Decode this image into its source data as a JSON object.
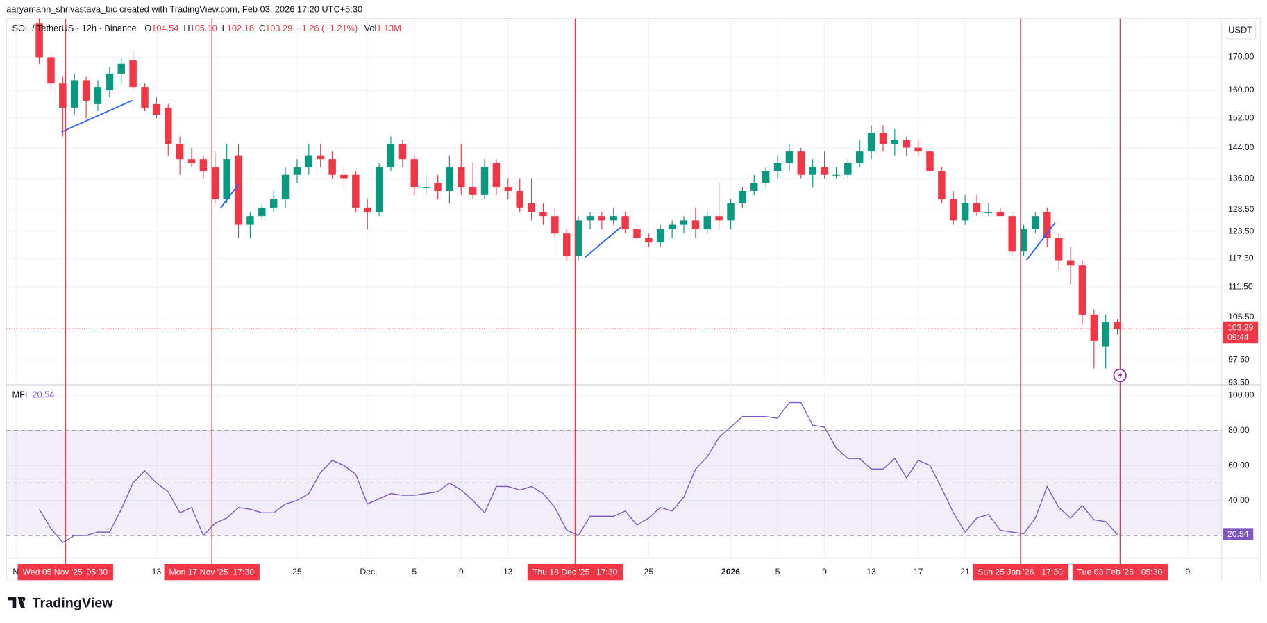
{
  "page": {
    "attribution": "aaryamann_shrivastava_bic created with TradingView.com, Feb 03, 2026 17:20 UTC+5:30",
    "logo": "TradingView",
    "currency": "USDT"
  },
  "chart_data": [
    {
      "type": "candlestick",
      "title": "SOL / TetherUS · 12h · Binance",
      "legend": [
        {
          "label": "O",
          "value": "104.54"
        },
        {
          "label": "H",
          "value": "105.10"
        },
        {
          "label": "L",
          "value": "102.18"
        },
        {
          "label": "C",
          "value": "103.29"
        }
      ],
      "change": "−1.26 (−1.21%)",
      "volume": {
        "label": "Vol",
        "value": "1.13M"
      },
      "x": [
        2,
        3,
        4,
        5,
        6,
        7,
        8,
        9,
        10,
        11,
        12,
        13,
        14,
        15,
        16,
        17,
        18,
        19,
        20,
        21,
        22,
        23,
        24,
        25,
        26,
        27,
        28,
        29,
        30,
        31,
        32,
        33,
        34,
        35,
        36,
        37,
        38,
        39,
        40,
        41,
        42,
        43,
        44,
        45,
        46,
        47,
        48,
        49,
        50,
        51,
        52,
        53,
        54,
        55,
        56,
        57,
        58,
        59,
        60,
        61,
        62,
        63,
        64,
        65,
        66,
        67,
        68,
        69,
        70,
        71,
        72,
        73,
        74,
        75,
        76,
        77,
        78,
        79,
        80,
        81,
        82,
        83,
        84,
        85,
        86,
        87,
        88,
        89,
        90,
        91,
        92,
        93,
        94
      ],
      "open": [
        181,
        170,
        162,
        155,
        163,
        156,
        160,
        165,
        169,
        161,
        156,
        155,
        145,
        141,
        141,
        139,
        131,
        142,
        125,
        127,
        129,
        131,
        137,
        139,
        142,
        141,
        137,
        137,
        129,
        128,
        139,
        145,
        141,
        134,
        135,
        133,
        139,
        134,
        132,
        140,
        134,
        133,
        130,
        128,
        127,
        123,
        118,
        126,
        127,
        126,
        127,
        124,
        122,
        121,
        124,
        125,
        126,
        124,
        127,
        126,
        130,
        133,
        135,
        138,
        140,
        143,
        137,
        139,
        137,
        137,
        140,
        143,
        148,
        145,
        146,
        144,
        143,
        138,
        131,
        126,
        130,
        128,
        128,
        127,
        119,
        124,
        128,
        122,
        117,
        116,
        106,
        100,
        104.54
      ],
      "high": [
        183,
        171,
        164,
        165,
        164,
        163,
        167,
        170,
        172,
        162,
        158,
        156,
        147,
        144,
        142,
        143,
        145,
        145,
        128,
        130,
        133,
        139,
        141,
        145,
        145,
        143,
        139,
        138,
        131,
        140,
        147,
        146,
        142,
        137,
        137,
        142,
        145,
        140,
        141,
        141,
        136,
        136,
        136,
        130,
        129,
        124,
        127,
        128,
        128,
        129,
        128,
        125,
        123,
        125,
        126,
        127,
        129,
        128,
        135,
        131,
        134,
        137,
        139,
        142,
        145,
        144,
        141,
        143,
        139,
        141,
        146,
        150,
        150,
        149,
        147,
        146,
        144,
        139,
        133,
        132,
        132,
        130,
        129,
        128,
        125,
        128,
        129,
        123,
        120,
        117,
        107,
        106,
        105.1
      ],
      "low": [
        168,
        160,
        147,
        153,
        152,
        154,
        158,
        162,
        160,
        154,
        152,
        142,
        137,
        139,
        136,
        130,
        130,
        122,
        122,
        126,
        128,
        129,
        135,
        137,
        139,
        136,
        134,
        128,
        124,
        127,
        138,
        139,
        132,
        132,
        131,
        130,
        132,
        131,
        131,
        132,
        131,
        128,
        126,
        125,
        122,
        117,
        117,
        124,
        124,
        125,
        123,
        121,
        120,
        120,
        122,
        123,
        122,
        123,
        124,
        124,
        129,
        132,
        134,
        136,
        138,
        136,
        134,
        136,
        136,
        136,
        139,
        141,
        143,
        142,
        142,
        142,
        137,
        130,
        125,
        125,
        127,
        127,
        127,
        118,
        118,
        123,
        120,
        115,
        112,
        104,
        96,
        96,
        102.18
      ],
      "close": [
        170,
        162,
        155,
        163,
        157,
        161,
        165,
        168,
        161,
        155,
        153,
        145,
        141,
        140,
        138,
        131,
        141,
        125,
        127,
        129,
        131,
        137,
        139,
        142,
        141,
        137,
        136,
        129,
        128,
        139,
        145,
        141,
        134,
        134,
        133,
        139,
        134,
        132,
        139,
        134,
        133,
        129,
        128,
        127,
        123,
        118,
        126,
        127,
        126,
        127,
        124,
        122,
        121,
        124,
        125,
        126,
        124,
        127,
        126,
        130,
        133,
        135,
        138,
        140,
        143,
        137,
        139,
        137,
        137,
        140,
        143,
        148,
        145,
        146,
        144,
        143,
        138,
        131,
        126,
        130,
        128,
        128,
        127,
        119,
        124,
        127,
        122,
        117,
        116,
        106,
        101,
        104.5,
        103.29
      ],
      "up_color": "#089981",
      "down_color": "#f23645",
      "ylim": [
        93.4,
        182.5
      ],
      "log_scale": true,
      "grid": true,
      "yticks": [
        {
          "value": 170,
          "label": "170.00"
        },
        {
          "value": 160,
          "label": "160.00"
        },
        {
          "value": 152,
          "label": "152.00"
        },
        {
          "value": 144,
          "label": "144.00"
        },
        {
          "value": 136,
          "label": "136.00"
        },
        {
          "value": 128.5,
          "label": "128.50"
        },
        {
          "value": 123.5,
          "label": "123.50"
        },
        {
          "value": 117.5,
          "label": "117.50"
        },
        {
          "value": 111.5,
          "label": "111.50"
        },
        {
          "value": 105.5,
          "label": "105.50"
        },
        {
          "value": 97.5,
          "label": "97.50"
        },
        {
          "value": 93.5,
          "label": "93.50"
        }
      ],
      "xlim": [
        -0.8,
        102.9
      ],
      "xticks": [
        {
          "value": 0,
          "label": "N"
        },
        {
          "value": 12,
          "label": "13"
        },
        {
          "value": 24,
          "label": "25"
        },
        {
          "value": 30,
          "label": "Dec"
        },
        {
          "value": 34,
          "label": "5"
        },
        {
          "value": 38,
          "label": "9"
        },
        {
          "value": 42,
          "label": "13"
        },
        {
          "value": 54,
          "label": "25"
        },
        {
          "value": 61,
          "label": "2026"
        },
        {
          "value": 65,
          "label": "5"
        },
        {
          "value": 69,
          "label": "9"
        },
        {
          "value": 73,
          "label": "13"
        },
        {
          "value": 77,
          "label": "17"
        },
        {
          "value": 81,
          "label": "21"
        },
        {
          "value": 100,
          "label": "9"
        }
      ],
      "last_price": {
        "countdown": "09:44"
      },
      "markers": [
        {
          "x": 4.23,
          "label": "Wed 05 Nov '25",
          "time": "05:30"
        },
        {
          "x": 16.73,
          "label": "Mon 17 Nov '25",
          "time": "17:30"
        },
        {
          "x": 47.73,
          "label": "Thu 18 Dec '25",
          "time": "17:30"
        },
        {
          "x": 85.73,
          "label": "Sun 25 Jan '26",
          "time": "17:30"
        },
        {
          "x": 94.23,
          "label": "Tue 03 Feb '26",
          "time": "05:30"
        }
      ],
      "marker_color": "#f23645"
    },
    {
      "type": "line",
      "title": "MFI",
      "color": "#7e57c2",
      "x": [
        2,
        3,
        4,
        5,
        6,
        7,
        8,
        9,
        10,
        11,
        12,
        13,
        14,
        15,
        16,
        17,
        18,
        19,
        20,
        21,
        22,
        23,
        24,
        25,
        26,
        27,
        28,
        29,
        30,
        31,
        32,
        33,
        34,
        35,
        36,
        37,
        38,
        39,
        40,
        41,
        42,
        43,
        44,
        45,
        46,
        47,
        48,
        49,
        50,
        51,
        52,
        53,
        54,
        55,
        56,
        57,
        58,
        59,
        60,
        61,
        62,
        63,
        64,
        65,
        66,
        67,
        68,
        69,
        70,
        71,
        72,
        73,
        74,
        75,
        76,
        77,
        78,
        79,
        80,
        81,
        82,
        83,
        84,
        85,
        86,
        87,
        88,
        89,
        90,
        91,
        92,
        93,
        94
      ],
      "values": [
        35,
        24,
        16,
        20,
        20,
        22,
        22,
        35,
        50,
        57,
        50,
        45,
        33,
        36,
        20,
        27,
        30,
        36,
        35,
        33,
        33,
        38,
        40,
        44,
        56,
        63,
        60,
        55,
        38,
        41,
        44,
        43,
        43,
        44,
        45,
        50,
        46,
        40,
        33,
        48,
        48,
        46,
        48,
        44,
        36,
        23,
        20,
        31,
        31,
        31,
        34,
        26,
        30,
        36,
        34,
        42,
        58,
        65,
        76,
        82,
        88,
        88,
        88,
        87,
        96,
        96,
        83,
        82,
        70,
        64,
        64,
        58,
        58,
        64,
        53,
        63,
        60,
        47,
        33,
        22,
        30,
        32,
        23,
        22,
        21,
        30,
        48,
        36,
        30,
        37,
        29,
        28,
        20.54
      ],
      "ylim": [
        7,
        105
      ],
      "yticks": [
        {
          "value": 100,
          "label": "100.00"
        },
        {
          "value": 80,
          "label": "80.00"
        },
        {
          "value": 60,
          "label": "60.00"
        },
        {
          "value": 40,
          "label": "40.00"
        }
      ],
      "levels": [
        20,
        50,
        80
      ]
    }
  ]
}
